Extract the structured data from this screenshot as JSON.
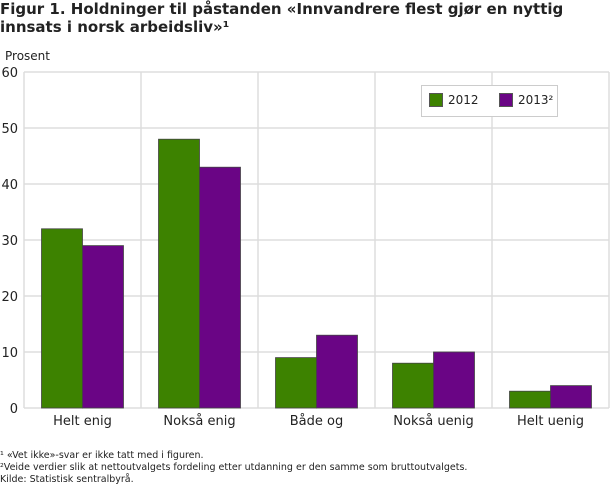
{
  "title": "Figur 1. Holdninger til påstanden «Innvandrere flest gjør en nyttig innsats i norsk arbeidsliv»¹",
  "colors": {
    "2012": "#3d8200",
    "2013": "#6a0585",
    "grid": "#dddddd"
  },
  "chart_data": {
    "type": "bar",
    "title": "Figur 1. Holdninger til påstanden «Innvandrere flest gjør en nyttig innsats i norsk arbeidsliv»¹",
    "ylabel": "Prosent",
    "xlabel": "",
    "ylim": [
      0,
      60
    ],
    "yticks": [
      0,
      10,
      20,
      30,
      40,
      50,
      60
    ],
    "grid": true,
    "legend_position": "top-right",
    "categories": [
      "Helt enig",
      "Nokså enig",
      "Både og",
      "Nokså uenig",
      "Helt uenig"
    ],
    "series": [
      {
        "name": "2012",
        "values": [
          32,
          48,
          9,
          8,
          3
        ]
      },
      {
        "name": "2013²",
        "values": [
          29,
          43,
          13,
          10,
          4
        ]
      }
    ]
  },
  "notes": [
    "¹ «Vet ikke»-svar er ikke tatt med i figuren.",
    "²Veide verdier slik at nettoutvalgets fordeling etter utdanning er den samme som bruttoutvalgets.",
    "Kilde: Statistisk sentralbyrå."
  ]
}
